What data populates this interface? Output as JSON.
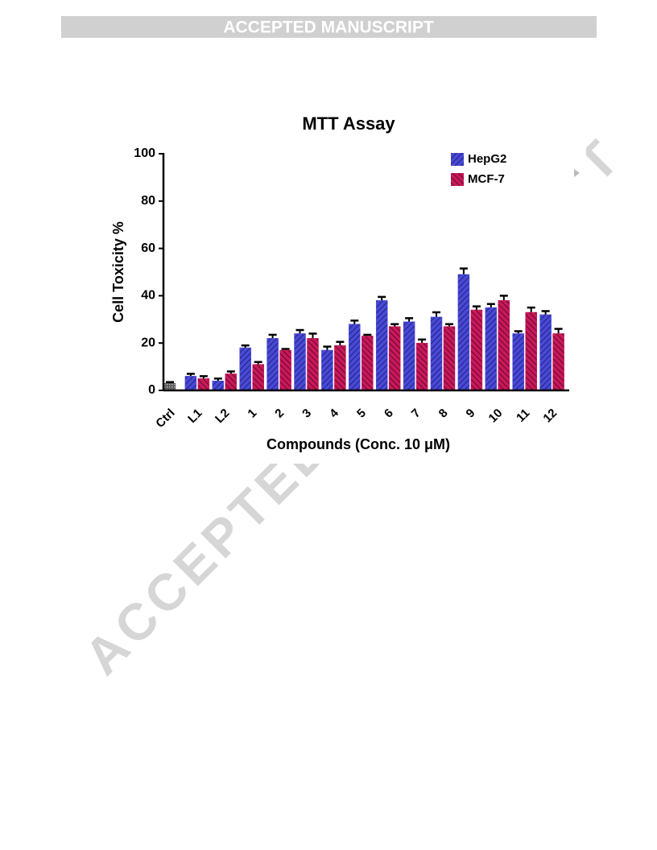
{
  "header": {
    "title": "ACCEPTED MANUSCRIPT"
  },
  "watermark": "ACCEPTED MANUSCRIPT",
  "chart_data": {
    "type": "bar",
    "title": "MTT Assay",
    "x_label": "Compounds (Conc. 10 μM)",
    "y_label": "Cell Toxicity %",
    "categories": [
      "Ctrl",
      "L1",
      "L2",
      "1",
      "2",
      "3",
      "4",
      "5",
      "6",
      "7",
      "8",
      "9",
      "10",
      "11",
      "12"
    ],
    "series": [
      {
        "name": "HepG2",
        "color": "#4848d8",
        "values": [
          3,
          6,
          4,
          18,
          22,
          24,
          17,
          28,
          38,
          29,
          31,
          49,
          35,
          24,
          32
        ],
        "errors": [
          0.5,
          1,
          1,
          1,
          1.5,
          1.5,
          1.5,
          1.5,
          1.5,
          1.5,
          2,
          2.5,
          1.5,
          1,
          1.5
        ]
      },
      {
        "name": "MCF-7",
        "color": "#c8185a",
        "values": [
          null,
          5,
          7,
          11,
          17,
          22,
          19,
          23,
          27,
          20,
          27,
          34,
          38,
          33,
          24
        ],
        "errors": [
          null,
          1,
          1,
          1,
          0.5,
          2,
          1.5,
          0.5,
          1,
          1.5,
          1,
          1.5,
          2,
          2,
          2
        ]
      }
    ],
    "control_color": "#555555",
    "ylim": [
      0,
      100
    ],
    "yticks": [
      0,
      20,
      40,
      60,
      80,
      100
    ],
    "legend": "top-right"
  }
}
